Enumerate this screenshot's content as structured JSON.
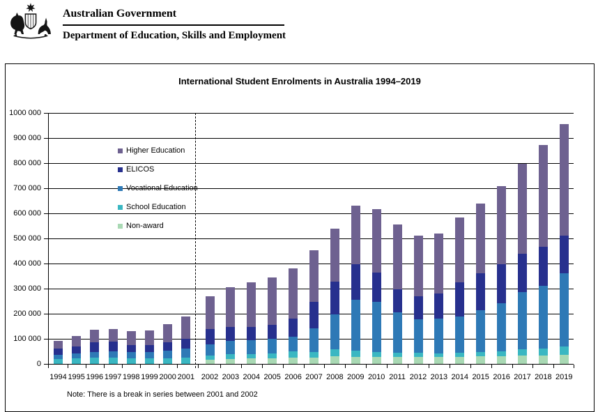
{
  "header": {
    "government": "Australian Government",
    "department": "Department of Education, Skills and Employment"
  },
  "chart_data": {
    "type": "bar",
    "stacked": true,
    "title": "International Student Enrolments in Australia 1994–2019",
    "note": "Note: There is a break in series between 2001 and 2002",
    "legend_position": "inside-upper-left",
    "grid": true,
    "y_axis": {
      "min": 0,
      "max": 1000000,
      "tick_step": 100000,
      "tick_labels": [
        "0",
        "100 000",
        "200 000",
        "300 000",
        "400 000",
        "500 000",
        "600 000",
        "700 000",
        "800 000",
        "900 000",
        "1000 000"
      ]
    },
    "categories": [
      "1994",
      "1995",
      "1996",
      "1997",
      "1998",
      "1999",
      "2000",
      "2001",
      "2002",
      "2003",
      "2004",
      "2005",
      "2006",
      "2007",
      "2008",
      "2009",
      "2010",
      "2011",
      "2012",
      "2013",
      "2014",
      "2015",
      "2016",
      "2017",
      "2018",
      "2019"
    ],
    "series": [
      {
        "name": "Higher Education",
        "color": "#6E6190",
        "values": [
          32000,
          40000,
          52000,
          52000,
          55000,
          57000,
          71000,
          89000,
          131000,
          159000,
          178000,
          190000,
          199000,
          204000,
          211000,
          233000,
          253000,
          258000,
          241000,
          240000,
          258000,
          278000,
          312000,
          357000,
          404000,
          444000
        ]
      },
      {
        "name": "ELICOS",
        "color": "#27308E",
        "values": [
          25000,
          29000,
          37000,
          38000,
          28000,
          28000,
          33000,
          40000,
          60000,
          55000,
          52000,
          55000,
          74000,
          105000,
          132000,
          143000,
          118000,
          92000,
          90000,
          100000,
          136000,
          148000,
          154000,
          155000,
          158000,
          152000
        ]
      },
      {
        "name": "Vocational Education",
        "color": "#2E79B6",
        "values": [
          17000,
          20000,
          24000,
          26000,
          26000,
          27000,
          31000,
          37000,
          45000,
          53000,
          54000,
          57000,
          58000,
          95000,
          139000,
          201000,
          198000,
          161000,
          135000,
          138000,
          144000,
          167000,
          193000,
          228000,
          248000,
          291000
        ]
      },
      {
        "name": "School Education",
        "color": "#3AB7C2",
        "values": [
          19000,
          21000,
          24000,
          24000,
          22000,
          21000,
          22000,
          24000,
          18000,
          19000,
          19000,
          20000,
          25000,
          22000,
          27000,
          26000,
          20000,
          16000,
          15000,
          14000,
          15000,
          16000,
          18000,
          24000,
          28000,
          33000
        ]
      },
      {
        "name": "Non-award",
        "color": "#A9D9B4",
        "values": [
          0,
          0,
          0,
          0,
          0,
          0,
          0,
          0,
          16000,
          19000,
          21000,
          23000,
          24000,
          26000,
          31000,
          28000,
          28000,
          28000,
          29000,
          28000,
          29000,
          30000,
          31000,
          33000,
          34000,
          36000
        ]
      }
    ],
    "stack_order_bottom_to_top": [
      "Non-award",
      "School Education",
      "Vocational Education",
      "ELICOS",
      "Higher Education"
    ],
    "break_between": [
      "2001",
      "2002"
    ]
  }
}
